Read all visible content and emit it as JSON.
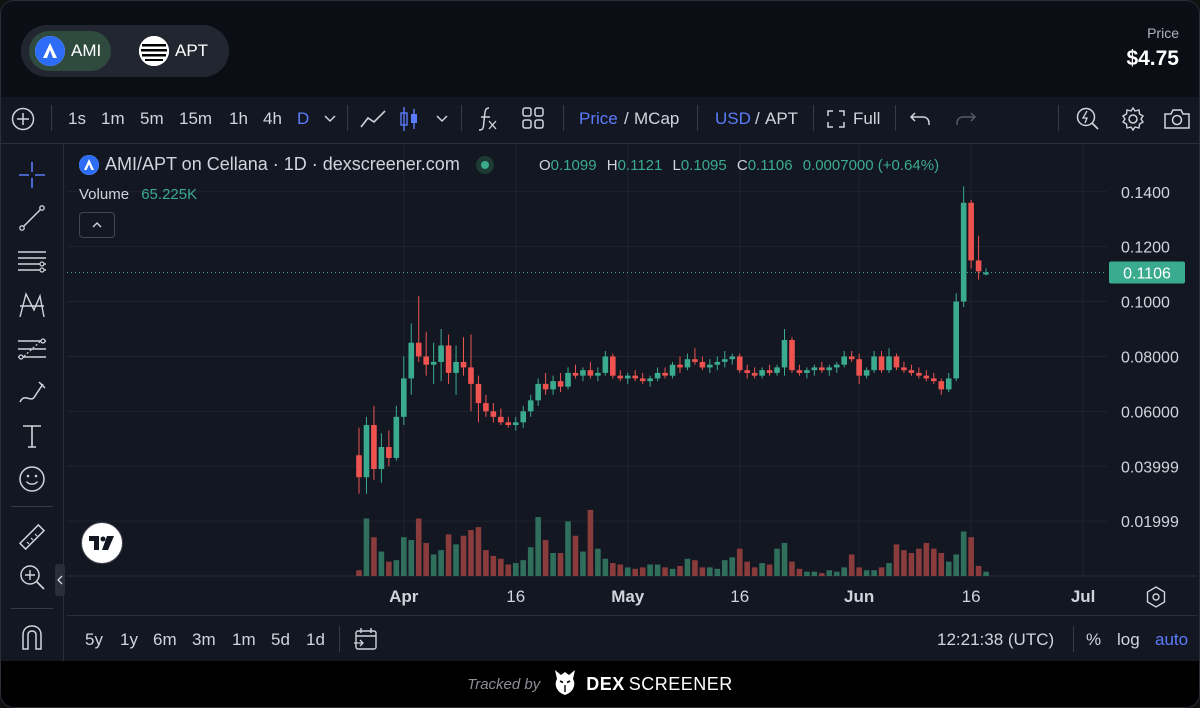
{
  "header": {
    "tokens": [
      {
        "symbol": "AMI",
        "active": true,
        "icon": "ami-logo-icon"
      },
      {
        "symbol": "APT",
        "active": false,
        "icon": "aptos-logo-icon"
      }
    ],
    "price_label": "Price",
    "price_value": "$4.75"
  },
  "toolbar": {
    "intervals": [
      "1s",
      "1m",
      "5m",
      "15m",
      "1h",
      "4h",
      "D"
    ],
    "active_interval": "D",
    "price_label": "Price",
    "slash1": "/",
    "mcap_label": "MCap",
    "usd_label": "USD",
    "slash2": "/",
    "apt_label": "APT",
    "full_label": "Full"
  },
  "legend": {
    "pair": "AMI/APT on Cellana · 1D · dexscreener.com",
    "o_key": "O",
    "o_val": "0.1099",
    "h_key": "H",
    "h_val": "0.1121",
    "l_key": "L",
    "l_val": "0.1095",
    "c_key": "C",
    "c_val": "0.1106",
    "change": "0.0007000 (+0.64%)",
    "volume_label": "Volume",
    "volume_value": "65.225K"
  },
  "bottom": {
    "ranges": [
      "5y",
      "1y",
      "6m",
      "3m",
      "1m",
      "5d",
      "1d"
    ],
    "clock": "12:21:38 (UTC)",
    "percent": "%",
    "log": "log",
    "auto": "auto"
  },
  "footer": {
    "tracked": "Tracked by",
    "brand_a": "DEX",
    "brand_b": "SCREENER"
  },
  "colors": {
    "up": "#3bab8f",
    "down": "#ef5350",
    "accent": "#5b7cfa",
    "bg": "#131722"
  },
  "chart_data": {
    "type": "candlestick",
    "title": "AMI/APT on Cellana · 1D · dexscreener.com",
    "ylim": [
      0.0,
      0.1432
    ],
    "y_ticks": [
      "0.1400",
      "0.1200",
      "0.1000",
      "0.08000",
      "0.06000",
      "0.03999",
      "0.01999"
    ],
    "y_tick_values": [
      0.14,
      0.12,
      0.1,
      0.08,
      0.06,
      0.03999,
      0.01999
    ],
    "x_ticks": [
      "Apr",
      "16",
      "May",
      "16",
      "Jun",
      "16",
      "Jul"
    ],
    "current_price": "0.1106",
    "current_value": 0.1106,
    "start_date": "2024-03-26",
    "candles": [
      [
        0.044,
        0.054,
        0.03,
        0.036
      ],
      [
        0.036,
        0.058,
        0.03,
        0.055
      ],
      [
        0.055,
        0.062,
        0.035,
        0.039
      ],
      [
        0.039,
        0.052,
        0.034,
        0.047
      ],
      [
        0.047,
        0.053,
        0.04,
        0.043
      ],
      [
        0.043,
        0.062,
        0.042,
        0.058
      ],
      [
        0.058,
        0.08,
        0.055,
        0.072
      ],
      [
        0.072,
        0.092,
        0.066,
        0.085
      ],
      [
        0.085,
        0.102,
        0.078,
        0.08
      ],
      [
        0.08,
        0.089,
        0.073,
        0.077
      ],
      [
        0.077,
        0.085,
        0.07,
        0.078
      ],
      [
        0.078,
        0.09,
        0.071,
        0.084
      ],
      [
        0.084,
        0.088,
        0.07,
        0.074
      ],
      [
        0.074,
        0.084,
        0.066,
        0.078
      ],
      [
        0.078,
        0.087,
        0.073,
        0.076
      ],
      [
        0.076,
        0.088,
        0.06,
        0.07
      ],
      [
        0.07,
        0.073,
        0.056,
        0.063
      ],
      [
        0.063,
        0.066,
        0.058,
        0.06
      ],
      [
        0.06,
        0.063,
        0.056,
        0.058
      ],
      [
        0.058,
        0.061,
        0.055,
        0.056
      ],
      [
        0.056,
        0.058,
        0.054,
        0.055
      ],
      [
        0.055,
        0.058,
        0.053,
        0.056
      ],
      [
        0.056,
        0.062,
        0.054,
        0.06
      ],
      [
        0.06,
        0.066,
        0.058,
        0.064
      ],
      [
        0.064,
        0.072,
        0.062,
        0.07
      ],
      [
        0.07,
        0.074,
        0.066,
        0.068
      ],
      [
        0.068,
        0.073,
        0.066,
        0.071
      ],
      [
        0.071,
        0.074,
        0.067,
        0.069
      ],
      [
        0.069,
        0.076,
        0.068,
        0.074
      ],
      [
        0.074,
        0.077,
        0.072,
        0.073
      ],
      [
        0.073,
        0.076,
        0.071,
        0.075
      ],
      [
        0.075,
        0.078,
        0.072,
        0.073
      ],
      [
        0.073,
        0.076,
        0.071,
        0.074
      ],
      [
        0.074,
        0.082,
        0.073,
        0.08
      ],
      [
        0.08,
        0.081,
        0.072,
        0.073
      ],
      [
        0.073,
        0.075,
        0.071,
        0.072
      ],
      [
        0.072,
        0.074,
        0.07,
        0.073
      ],
      [
        0.073,
        0.075,
        0.071,
        0.072
      ],
      [
        0.072,
        0.074,
        0.07,
        0.071
      ],
      [
        0.071,
        0.073,
        0.069,
        0.072
      ],
      [
        0.072,
        0.076,
        0.071,
        0.074
      ],
      [
        0.074,
        0.076,
        0.072,
        0.073
      ],
      [
        0.073,
        0.078,
        0.072,
        0.077
      ],
      [
        0.077,
        0.08,
        0.074,
        0.076
      ],
      [
        0.076,
        0.081,
        0.075,
        0.079
      ],
      [
        0.079,
        0.083,
        0.077,
        0.078
      ],
      [
        0.078,
        0.08,
        0.075,
        0.076
      ],
      [
        0.076,
        0.079,
        0.074,
        0.077
      ],
      [
        0.077,
        0.08,
        0.075,
        0.078
      ],
      [
        0.078,
        0.082,
        0.076,
        0.079
      ],
      [
        0.079,
        0.081,
        0.077,
        0.08
      ],
      [
        0.08,
        0.081,
        0.074,
        0.075
      ],
      [
        0.075,
        0.077,
        0.072,
        0.074
      ],
      [
        0.074,
        0.076,
        0.072,
        0.073
      ],
      [
        0.073,
        0.076,
        0.072,
        0.075
      ],
      [
        0.075,
        0.077,
        0.073,
        0.074
      ],
      [
        0.074,
        0.077,
        0.073,
        0.076
      ],
      [
        0.076,
        0.09,
        0.073,
        0.086
      ],
      [
        0.086,
        0.087,
        0.074,
        0.075
      ],
      [
        0.075,
        0.077,
        0.073,
        0.074
      ],
      [
        0.074,
        0.076,
        0.072,
        0.075
      ],
      [
        0.075,
        0.077,
        0.073,
        0.076
      ],
      [
        0.076,
        0.078,
        0.074,
        0.075
      ],
      [
        0.075,
        0.077,
        0.073,
        0.076
      ],
      [
        0.076,
        0.078,
        0.074,
        0.077
      ],
      [
        0.077,
        0.082,
        0.076,
        0.08
      ],
      [
        0.08,
        0.082,
        0.078,
        0.079
      ],
      [
        0.079,
        0.081,
        0.07,
        0.073
      ],
      [
        0.073,
        0.076,
        0.072,
        0.075
      ],
      [
        0.075,
        0.082,
        0.074,
        0.08
      ],
      [
        0.08,
        0.082,
        0.074,
        0.075
      ],
      [
        0.075,
        0.083,
        0.074,
        0.08
      ],
      [
        0.08,
        0.081,
        0.075,
        0.076
      ],
      [
        0.076,
        0.078,
        0.074,
        0.075
      ],
      [
        0.075,
        0.077,
        0.073,
        0.074
      ],
      [
        0.074,
        0.076,
        0.072,
        0.073
      ],
      [
        0.073,
        0.075,
        0.071,
        0.072
      ],
      [
        0.072,
        0.074,
        0.07,
        0.071
      ],
      [
        0.071,
        0.072,
        0.066,
        0.068
      ],
      [
        0.068,
        0.074,
        0.067,
        0.072
      ],
      [
        0.072,
        0.103,
        0.071,
        0.1
      ],
      [
        0.1,
        0.142,
        0.098,
        0.136
      ],
      [
        0.136,
        0.137,
        0.112,
        0.115
      ],
      [
        0.115,
        0.124,
        0.108,
        0.111
      ],
      [
        0.1099,
        0.1121,
        0.1095,
        0.1106
      ]
    ],
    "volumes": [
      0.4,
      4.0,
      2.7,
      1.7,
      1.0,
      1.1,
      2.7,
      2.5,
      4.0,
      2.3,
      1.5,
      1.8,
      2.9,
      2.2,
      2.8,
      3.2,
      3.4,
      1.8,
      1.4,
      1.2,
      0.8,
      0.9,
      1.1,
      2.0,
      4.1,
      2.5,
      1.6,
      1.6,
      3.8,
      2.8,
      1.7,
      4.6,
      1.9,
      1.2,
      0.9,
      0.8,
      0.6,
      0.5,
      0.6,
      0.8,
      0.8,
      0.6,
      0.5,
      0.7,
      1.2,
      1.1,
      0.6,
      0.6,
      0.5,
      1.1,
      1.3,
      1.9,
      1.0,
      0.6,
      0.9,
      0.8,
      1.9,
      2.3,
      1.0,
      0.5,
      0.3,
      0.3,
      0.2,
      0.4,
      0.3,
      0.6,
      1.5,
      0.6,
      0.4,
      0.4,
      0.6,
      0.9,
      2.2,
      1.8,
      1.6,
      1.9,
      2.3,
      1.9,
      1.6,
      1.0,
      1.5,
      3.1,
      2.7,
      0.7,
      0.3
    ],
    "volume_max": 8.0
  }
}
